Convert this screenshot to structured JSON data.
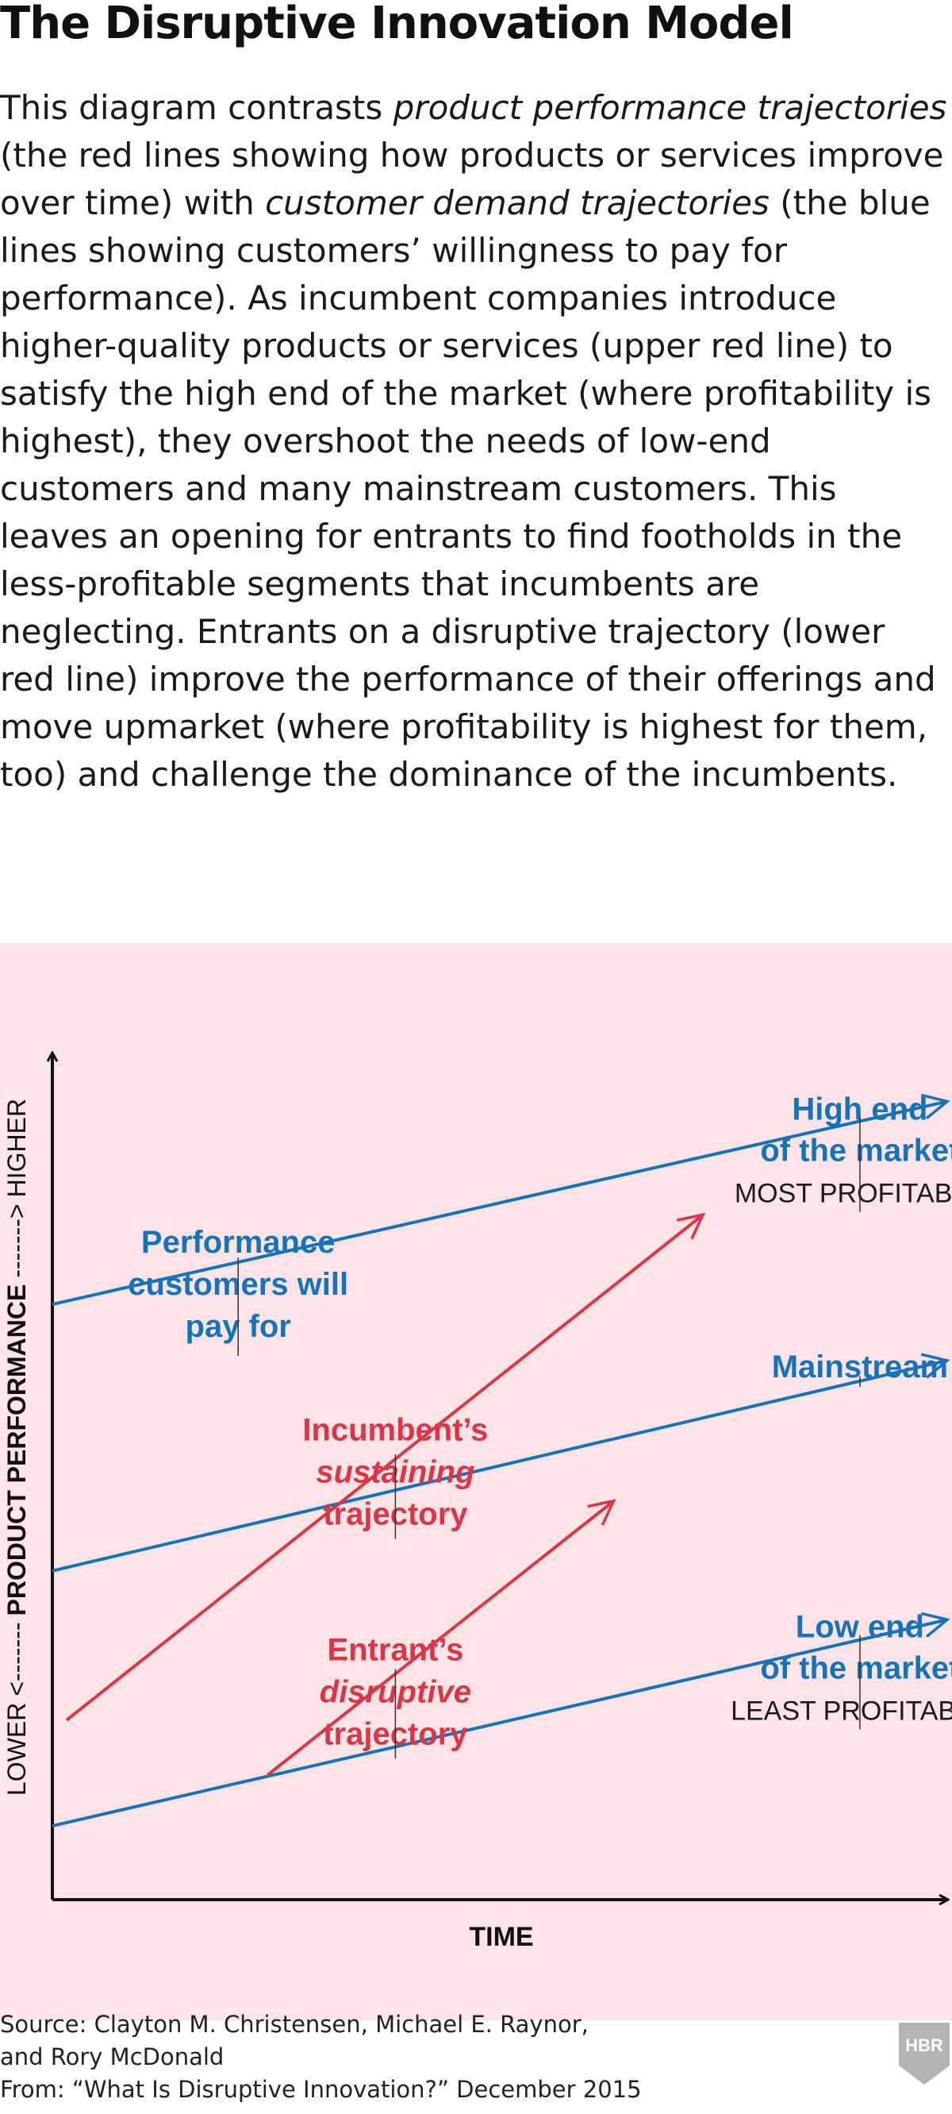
{
  "title": "The Disruptive Innovation Model",
  "intro": {
    "t1": "This diagram contrasts ",
    "e1": "product performance trajectories",
    "t2": " (the red lines showing how products or services improve over time) with ",
    "e2": "customer demand trajectories",
    "t3": " (the blue lines showing customers’ willingness to pay for performance). As incumbent companies introduce higher-quality products or services (upper red line) to satisfy the high end of the market (where profitability is highest), they overshoot the needs of low-end customers and many mainstream customers. This leaves an opening for entrants to find footholds in the less-profitable segments that incumbents are neglecting. Entrants on a disruptive trajectory (lower red line) improve the performance of their offerings and move upmarket (where profitability is highest for them, too) and challenge the dominance of the incumbents."
  },
  "colors": {
    "demand": "#1573ba",
    "performance": "#dc3545",
    "panel_bg": "#fce4e6",
    "axis": "#111111"
  },
  "chart_data": {
    "type": "line",
    "xlabel": "TIME",
    "ylabel": {
      "low": "LOWER",
      "arrow_low": "<-------",
      "middle": "PRODUCT PERFORMANCE",
      "arrow_high": "------->",
      "high": "HIGHER"
    },
    "xlim": [
      0,
      100
    ],
    "ylim": [
      0,
      100
    ],
    "grid": false,
    "series": [
      {
        "key": "high_end",
        "kind": "demand",
        "label_lines": [
          "High end",
          "of the market"
        ],
        "sublabel": "MOST PROFITABLE",
        "points": [
          [
            0,
            72.6
          ],
          [
            100,
            97.3
          ]
        ],
        "label_at": [
          90.4,
          95.1
        ]
      },
      {
        "key": "mainstream",
        "kind": "demand",
        "label_lines": [
          "Mainstream"
        ],
        "sublabel": "",
        "points": [
          [
            0,
            40.1
          ],
          [
            100,
            65.7
          ]
        ],
        "label_at": [
          90.4,
          63.7
        ]
      },
      {
        "key": "low_end",
        "kind": "demand",
        "label_lines": [
          "Low end",
          "of the market"
        ],
        "sublabel": "LEAST PROFITABLE",
        "points": [
          [
            0,
            9.0
          ],
          [
            100,
            34.1
          ]
        ],
        "label_at": [
          90.4,
          32.0
        ]
      },
      {
        "key": "incumbent",
        "kind": "performance",
        "label_lines": [
          "Incumbent’s",
          "sustaining",
          "trajectory"
        ],
        "italic_line": 1,
        "points": [
          [
            1.6,
            21.9
          ],
          [
            72.7,
            83.4
          ]
        ],
        "label_at": [
          38.4,
          56.0
        ]
      },
      {
        "key": "entrant",
        "kind": "performance",
        "label_lines": [
          "Entrant’s",
          "disruptive",
          "trajectory"
        ],
        "italic_line": 1,
        "points": [
          [
            24.1,
            15.2
          ],
          [
            62.7,
            48.5
          ]
        ],
        "label_at": [
          38.4,
          29.2
        ]
      }
    ],
    "annotations": [
      {
        "key": "customers",
        "kind": "demand",
        "text_lines": [
          "Performance",
          "customers will",
          "pay for"
        ],
        "at": [
          20.8,
          78.9
        ]
      }
    ]
  },
  "source": {
    "line1": "Source: Clayton M. Christensen, Michael E. Raynor,",
    "line2": "and Rory McDonald",
    "line3": "From: “What Is Disruptive Innovation?” December 2015"
  },
  "logo": {
    "text": "HBR"
  }
}
